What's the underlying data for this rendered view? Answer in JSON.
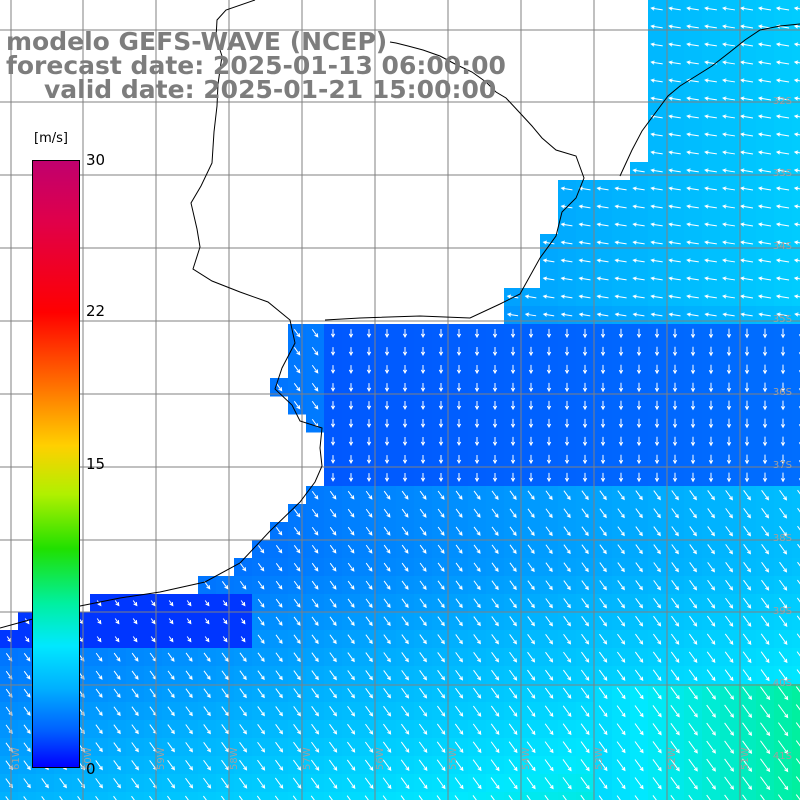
{
  "title": {
    "model": "modelo GEFS-WAVE (NCEP)",
    "forecast_date": "forecast date: 2025-01-13 06:00:00",
    "valid_date": "valid date: 2025-01-21 15:00:00"
  },
  "colorbar": {
    "unit": "[m/s]",
    "ticks": [
      "30",
      "22",
      "15",
      "0"
    ],
    "min": 0,
    "max": 30
  },
  "grid": {
    "lat_labels": [
      "32S",
      "33S",
      "34S",
      "35S",
      "36S",
      "37S",
      "38S",
      "39S",
      "40S",
      "41S"
    ],
    "lon_labels": [
      "61W",
      "60W",
      "59W",
      "58W",
      "57W",
      "56W",
      "55W",
      "54W",
      "53W",
      "52W",
      "51W"
    ]
  },
  "colors": {
    "land": "#ffffff",
    "coastline": "#000000",
    "grid": "#808080",
    "arrows": "#ffffff",
    "title": "#7d7d7d"
  }
}
